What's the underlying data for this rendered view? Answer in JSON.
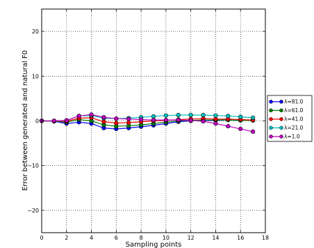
{
  "chart_data": {
    "type": "line",
    "title": "",
    "xlabel": "Sampling points",
    "ylabel": "Error between generated and natural F0",
    "xlim": [
      0,
      18
    ],
    "ylim": [
      -25,
      25
    ],
    "xticks": [
      0,
      2,
      4,
      6,
      8,
      10,
      12,
      14,
      16,
      18
    ],
    "yticks": [
      -20,
      -10,
      0,
      10,
      20
    ],
    "ytick_labels": [
      "−20",
      "−10",
      "0",
      "10",
      "20"
    ],
    "grid": true,
    "legend_position": "right, outside plot area",
    "x": [
      0,
      1,
      2,
      3,
      4,
      5,
      6,
      7,
      8,
      9,
      10,
      11,
      12,
      13,
      14,
      15,
      16,
      17
    ],
    "series": [
      {
        "name": "λ=81.0",
        "color": "#0000ff",
        "values": [
          0,
          -0.1,
          -0.6,
          -0.3,
          -0.6,
          -1.6,
          -1.8,
          -1.6,
          -1.3,
          -1.0,
          -0.6,
          -0.2,
          0.0,
          0.1,
          0.1,
          0.2,
          0.1,
          0.1
        ]
      },
      {
        "name": "λ=61.0",
        "color": "#008000",
        "values": [
          0,
          -0.1,
          -0.3,
          0.3,
          0.0,
          -0.9,
          -1.2,
          -1.1,
          -0.9,
          -0.6,
          -0.3,
          0.0,
          0.1,
          0.2,
          0.2,
          0.2,
          0.1,
          0.1
        ]
      },
      {
        "name": "λ=41.0",
        "color": "#ff0000",
        "values": [
          0,
          0.0,
          -0.1,
          0.6,
          0.7,
          -0.2,
          -0.5,
          -0.4,
          -0.2,
          0.0,
          0.1,
          0.3,
          0.4,
          0.5,
          0.4,
          0.4,
          0.3,
          0.2
        ]
      },
      {
        "name": "λ=21.0",
        "color": "#00bfbf",
        "values": [
          0,
          0.0,
          0.1,
          1.1,
          1.2,
          0.6,
          0.5,
          0.6,
          0.8,
          1.0,
          1.2,
          1.3,
          1.3,
          1.3,
          1.2,
          1.1,
          0.9,
          0.7
        ]
      },
      {
        "name": "λ=1.0",
        "color": "#bf00bf",
        "values": [
          0,
          0.0,
          0.1,
          1.1,
          1.4,
          0.8,
          0.5,
          0.4,
          0.3,
          0.2,
          0.2,
          0.2,
          0.1,
          -0.1,
          -0.6,
          -1.2,
          -1.8,
          -2.4
        ]
      }
    ]
  }
}
